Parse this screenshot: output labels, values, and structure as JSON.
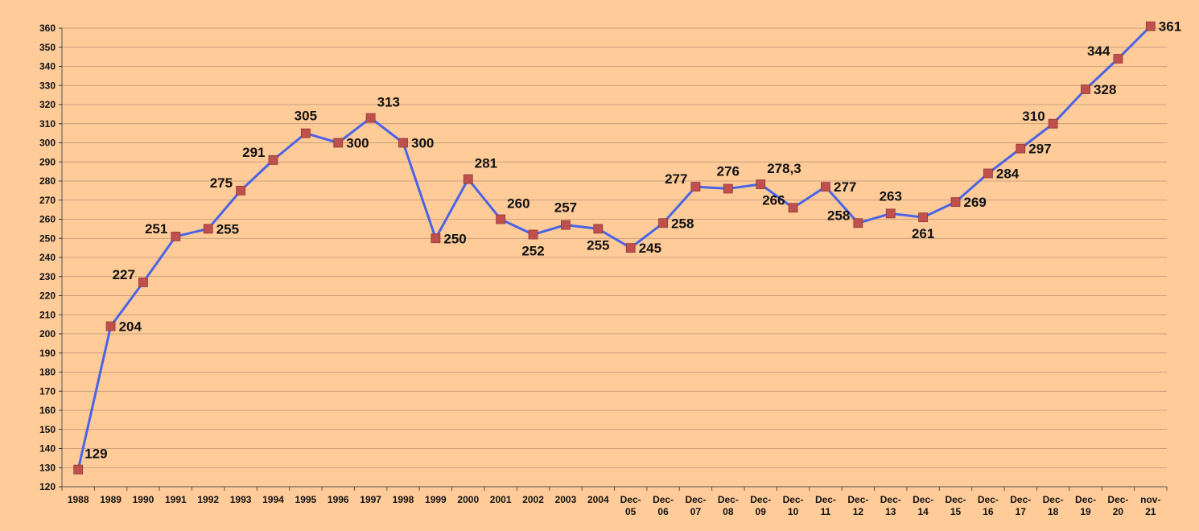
{
  "chart_data": {
    "type": "line",
    "title": "",
    "xlabel": "",
    "ylabel": "",
    "ylim": [
      120,
      360
    ],
    "ytick_step": 10,
    "grid": true,
    "legend": "none",
    "colors": {
      "background": "#FFCC99",
      "line": "#4A63E6",
      "marker": "#C0504D",
      "grid": "#B89070"
    },
    "categories": [
      [
        "1988"
      ],
      [
        "1989"
      ],
      [
        "1990"
      ],
      [
        "1991"
      ],
      [
        "1992"
      ],
      [
        "1993"
      ],
      [
        "1994"
      ],
      [
        "1995"
      ],
      [
        "1996"
      ],
      [
        "1997"
      ],
      [
        "1998"
      ],
      [
        "1999"
      ],
      [
        "2000"
      ],
      [
        "2001"
      ],
      [
        "2002"
      ],
      [
        "2003"
      ],
      [
        "2004"
      ],
      [
        "Dec-",
        "05"
      ],
      [
        "Dec-",
        "06"
      ],
      [
        "Dec-",
        "07"
      ],
      [
        "Dec-",
        "08"
      ],
      [
        "Dec-",
        "09"
      ],
      [
        "Dec-",
        "10"
      ],
      [
        "Dec-",
        "11"
      ],
      [
        "Dec-",
        "12"
      ],
      [
        "Dec-",
        "13"
      ],
      [
        "Dec-",
        "14"
      ],
      [
        "Dec-",
        "15"
      ],
      [
        "Dec-",
        "16"
      ],
      [
        "Dec-",
        "17"
      ],
      [
        "Dec-",
        "18"
      ],
      [
        "Dec-",
        "19"
      ],
      [
        "Dec-",
        "20"
      ],
      [
        "nov-",
        "21"
      ]
    ],
    "values": [
      129,
      204,
      227,
      251,
      255,
      275,
      291,
      305,
      300,
      313,
      300,
      250,
      281,
      260,
      252,
      257,
      255,
      245,
      258,
      277,
      276,
      278.3,
      266,
      277,
      258,
      263,
      261,
      269,
      284,
      297,
      310,
      328,
      344,
      361
    ],
    "data_labels": [
      "129",
      "204",
      "227",
      "251",
      "255",
      "275",
      "291",
      "305",
      "300",
      "313",
      "300",
      "250",
      "281",
      "260",
      "252",
      "257",
      "255",
      "245",
      "258",
      "277",
      "276",
      "278,3",
      "266",
      "277",
      "258",
      "263",
      "261",
      "269",
      "284",
      "297",
      "310",
      "328",
      "344",
      "361"
    ],
    "label_positions": [
      "above-right",
      "right",
      "left",
      "left",
      "right",
      "left",
      "left",
      "above",
      "right",
      "above-right",
      "right",
      "right",
      "above-right",
      "above-right",
      "below",
      "above",
      "below",
      "right",
      "right",
      "left",
      "above",
      "above-right",
      "left",
      "right",
      "left",
      "above",
      "below",
      "right",
      "right",
      "right",
      "left",
      "right",
      "left",
      "right"
    ]
  }
}
